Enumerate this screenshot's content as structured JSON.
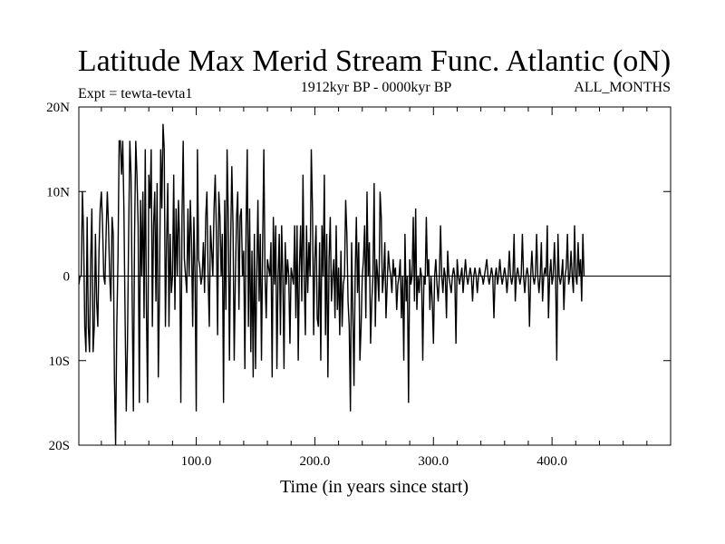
{
  "chart_data": {
    "type": "line",
    "title": "Latitude Max Merid Stream Func. Atlantic (oN)",
    "experiment": "Expt = tewta-tevta1",
    "period": "1912kyr BP - 0000kyr BP",
    "season": "ALL_MONTHS",
    "xlabel": "Time (in years since start)",
    "ylabel": "",
    "xlim": [
      1,
      500
    ],
    "ylim": [
      -20,
      20
    ],
    "x_ticks": [
      {
        "value": 100,
        "label": "100.0"
      },
      {
        "value": 200,
        "label": "200.0"
      },
      {
        "value": 300,
        "label": "300.0"
      },
      {
        "value": 400,
        "label": "400.0"
      }
    ],
    "y_ticks": [
      {
        "value": 20,
        "label": "20N"
      },
      {
        "value": 10,
        "label": "10N"
      },
      {
        "value": 0,
        "label": "0"
      },
      {
        "value": -10,
        "label": "10S"
      },
      {
        "value": -20,
        "label": "20S"
      }
    ],
    "zero_line": true,
    "grid": false,
    "colors": {
      "line": "#000000",
      "axis": "#000000",
      "background": "#ffffff"
    },
    "series": [
      {
        "x_start": 1,
        "x_step": 1,
        "values": [
          -1,
          0,
          0,
          10,
          5,
          -6,
          -9,
          7,
          -6,
          -9,
          2,
          8,
          -9,
          -6,
          5,
          -3,
          -6,
          3,
          8,
          10,
          6,
          0,
          -1,
          5,
          10,
          6,
          0,
          -3,
          7,
          5,
          -12,
          -20,
          -6,
          2,
          16,
          16,
          12,
          16,
          8,
          -5,
          -16,
          -8,
          5,
          16,
          12,
          -3,
          -16,
          5,
          16,
          12,
          6,
          -15,
          9,
          0,
          10,
          -5,
          15,
          -4,
          -15,
          12,
          8,
          15,
          -6,
          6,
          10,
          -3,
          11,
          -12,
          -2,
          15,
          8,
          18,
          15,
          -6,
          4,
          11,
          -6,
          5,
          -2,
          0,
          12,
          -4,
          8,
          0,
          9,
          4,
          -15,
          7,
          16,
          2,
          0,
          -2,
          8,
          0,
          9,
          4,
          -6,
          7,
          0,
          -16,
          15,
          2,
          1,
          -1,
          0,
          4,
          -2,
          7,
          10,
          0,
          -6,
          6,
          3,
          0,
          8,
          12,
          5,
          -7,
          10,
          7,
          0,
          5,
          -15,
          9,
          -4,
          15,
          7,
          -10,
          4,
          13,
          6,
          -10,
          0,
          7,
          10,
          -4,
          7,
          8,
          0,
          3,
          -11,
          6,
          15,
          -6,
          8,
          -9,
          3,
          -12,
          5,
          -11,
          0,
          9,
          -3,
          5,
          -10,
          4,
          15,
          0,
          -5,
          2,
          1,
          0,
          4,
          -12,
          7,
          -1,
          6,
          -11,
          0,
          5,
          -7,
          6,
          0,
          -11,
          4,
          -1,
          2,
          0,
          -8,
          1,
          0,
          -1,
          6,
          -5,
          6,
          -10,
          1,
          6,
          -3,
          12,
          0,
          -7,
          6,
          -2,
          4,
          0,
          15,
          8,
          -7,
          2,
          6,
          -5,
          -6,
          4,
          -10,
          6,
          0,
          12,
          -7,
          5,
          -12,
          2,
          7,
          -3,
          0,
          2,
          -5,
          6,
          -4,
          1,
          -7,
          3,
          -6,
          -1,
          0,
          9,
          5,
          -3,
          -6,
          -16,
          4,
          -4,
          -13,
          0,
          7,
          -2,
          4,
          -10,
          -6,
          0,
          2,
          6,
          -5,
          10,
          0,
          4,
          -8,
          -3,
          0,
          11,
          -6,
          2,
          0,
          -3,
          10,
          7,
          -2,
          0,
          4,
          -5,
          -1,
          3,
          1,
          0,
          -2,
          2,
          0,
          1,
          -4,
          -1,
          0,
          2,
          -5,
          0,
          -10,
          5,
          -3,
          0,
          -15,
          2,
          -1,
          0,
          7,
          -3,
          8,
          -4,
          0,
          -2,
          1,
          0,
          -10,
          0,
          -1,
          7,
          0,
          2,
          -4,
          0,
          -3,
          -8,
          0,
          2,
          -1,
          -3,
          0,
          6,
          0,
          -2,
          1,
          0,
          -5,
          3,
          0,
          -1,
          -2,
          0,
          1,
          0,
          -8,
          2,
          0,
          -1,
          0,
          1,
          -2,
          0,
          2,
          0,
          -1,
          0,
          1,
          0,
          -3,
          0,
          1,
          0,
          -2,
          0,
          1,
          0,
          0,
          -1,
          0,
          1,
          2,
          0,
          -1,
          0,
          1,
          0,
          -5,
          0,
          1,
          -1,
          0,
          2,
          0,
          -1,
          0,
          1,
          0,
          -2,
          0,
          3,
          0,
          -1,
          0,
          5,
          -3,
          0,
          1,
          0,
          -1,
          0,
          5,
          0,
          -2,
          0,
          1,
          0,
          -6,
          0,
          3,
          0,
          -1,
          0,
          5,
          0,
          -2,
          0,
          4,
          -3,
          0,
          1,
          0,
          6,
          -5,
          0,
          2,
          -1,
          0,
          4,
          0,
          -10,
          5,
          0,
          -1,
          0,
          2,
          -4,
          0,
          1,
          5,
          -1,
          0,
          3,
          0,
          -2,
          6,
          0,
          -1,
          4,
          0,
          2,
          -3,
          5,
          0
        ]
      }
    ]
  }
}
